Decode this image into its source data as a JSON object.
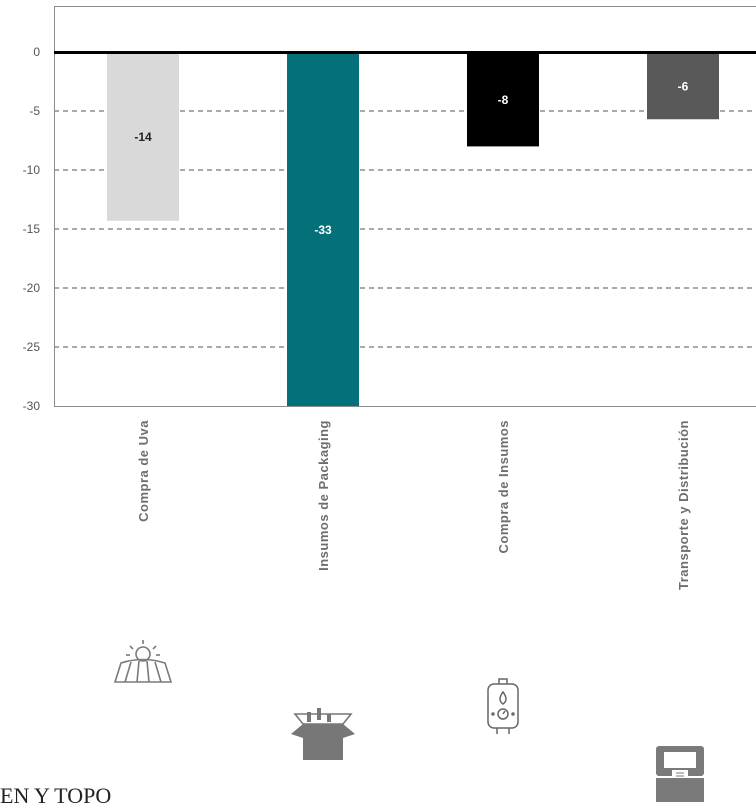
{
  "chart_data": {
    "type": "bar",
    "categories": [
      "Compra de Uva",
      "Insumos de Packaging",
      "Compra de Insumos",
      "Transporte y Distribución"
    ],
    "values": [
      -14.3,
      -33,
      -8,
      -5.7
    ],
    "data_labels": [
      "-14",
      "-33",
      "-8",
      "-6"
    ],
    "bar_colors": [
      "#d9d9d9",
      "#04717a",
      "#000000",
      "#595959"
    ],
    "label_colors": [
      "#222222",
      "#ffffff",
      "#ffffff",
      "#ffffff"
    ],
    "ylim": [
      -30,
      0
    ],
    "yticks": [
      0,
      -5,
      -10,
      -15,
      -20,
      -25,
      -30
    ],
    "ytick_labels": [
      "0",
      "-5",
      "-10",
      "-15",
      "-20",
      "-25",
      "-30"
    ],
    "grid": "dashed horizontal",
    "xlabel": "",
    "ylabel": ""
  },
  "icons": [
    "vineyard-sun-icon",
    "packaging-box-bottles-icon",
    "water-heater-icon",
    "truck-icon"
  ],
  "caption": "EN Y TOPO"
}
